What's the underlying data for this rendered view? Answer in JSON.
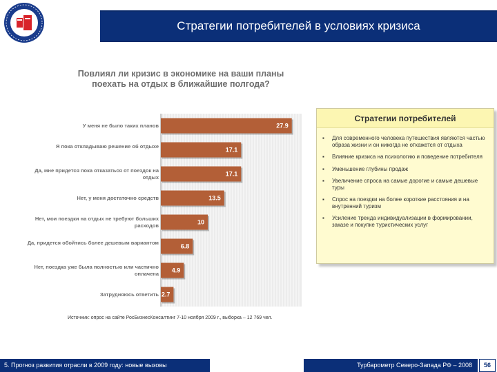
{
  "header": {
    "title": "Стратегии потребителей в условиях кризиса"
  },
  "chart_data": {
    "type": "bar",
    "orientation": "horizontal",
    "title": "Повлиял ли кризис в экономике на ваши планы поехать на отдых в ближайшие полгода?",
    "categories": [
      "У меня не было таких планов",
      "Я пока откладываю решение об отдыхе",
      "Да, мне придется пока отказаться от поездок на отдых",
      "Нет, у меня достаточно средств",
      "Нет, мои поездки на отдых не требуют больших расходов",
      "Да, придется обойтись более дешевым вариантом",
      "Нет, поездка уже была полностью или частично оплачена",
      "Затрудняюсь ответить"
    ],
    "values": [
      27.9,
      17.1,
      17.1,
      13.5,
      10,
      6.8,
      4.9,
      2.7
    ],
    "value_labels": [
      "27.9",
      "17.1",
      "17.1",
      "13.5",
      "10",
      "6.8",
      "4.9",
      "2.7"
    ],
    "xlim": [
      0,
      30
    ],
    "bar_color": "#b35f37",
    "label_color": "#ffffff",
    "grid": true,
    "legend": "none"
  },
  "strategies": {
    "title": "Стратегии потребителей",
    "bullet": "▪",
    "items": [
      "Для современного человека путешествия являются частью образа жизни и он никогда не откажется от отдыха",
      "Влияние кризиса на психологию и поведение потребителя",
      "Уменьшение глубины продаж",
      "Увеличение спроса на самые дорогие и самые дешевые туры",
      "Спрос на поездки на более короткие расстояния и на внутренний туризм",
      "Усиление тренда индивидуализации в формировании, заказе и покупке туристических услуг"
    ]
  },
  "source": "Источник: опрос на сайте РосБизнесКонсалтинг 7-10 ноября 2009 г., выборка – 12 769 чел.",
  "footer": {
    "left": "5. Прогноз развития отрасли в 2009 году: новые вызовы",
    "right": "Турбарометр Северо-Запада РФ – 2008",
    "page": "56"
  },
  "colors": {
    "brand_blue": "#0b2f78",
    "bar": "#b35f37",
    "note_bg": "#fffbd0"
  }
}
